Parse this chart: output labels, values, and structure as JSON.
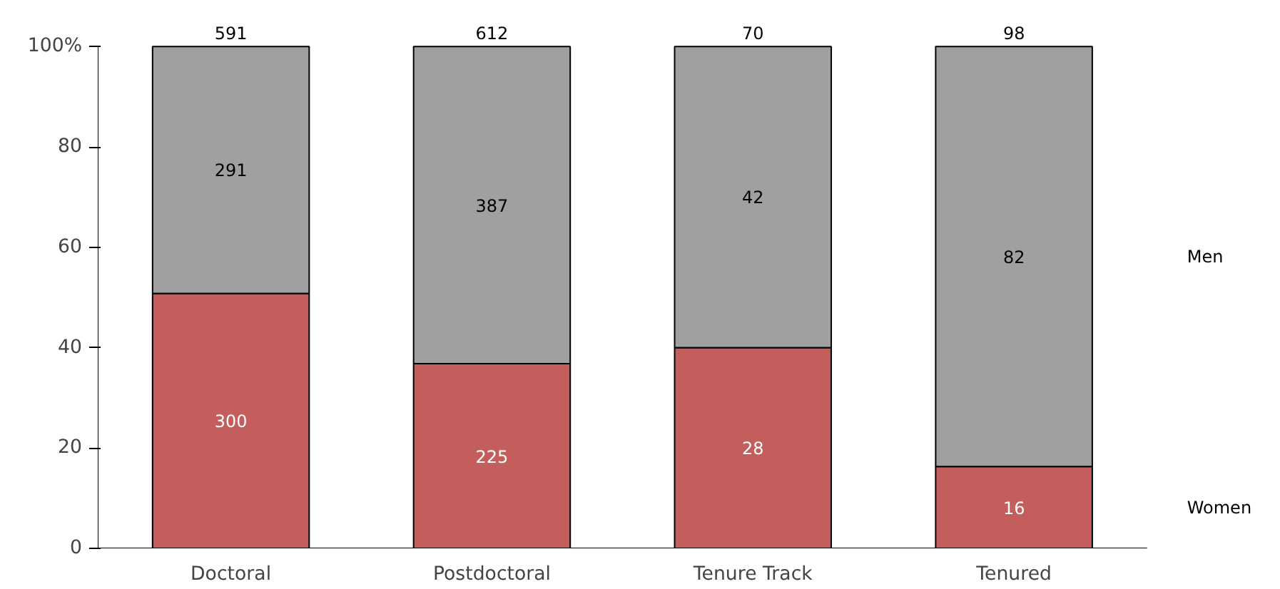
{
  "chart_data": {
    "type": "bar",
    "stacked": true,
    "categories": [
      "Doctoral",
      "Postdoctoral",
      "Tenure Track",
      "Tenured"
    ],
    "series": [
      {
        "name": "Women",
        "color": "#c45e5c",
        "values": [
          50.8,
          36.8,
          40,
          16.3
        ]
      },
      {
        "name": "Men",
        "color": "#a0a0a0",
        "values": [
          49.2,
          63.2,
          60,
          83.7
        ]
      }
    ],
    "annotations": [
      "300",
      "225",
      "28",
      "16",
      "291",
      "387",
      "42",
      "82",
      "591",
      "612",
      "70",
      "98"
    ],
    "ylim": [
      0,
      100
    ],
    "yticks": [
      0,
      20,
      40,
      60,
      80,
      {
        "value": 100,
        "label": "100%"
      }
    ],
    "grid": false
  }
}
